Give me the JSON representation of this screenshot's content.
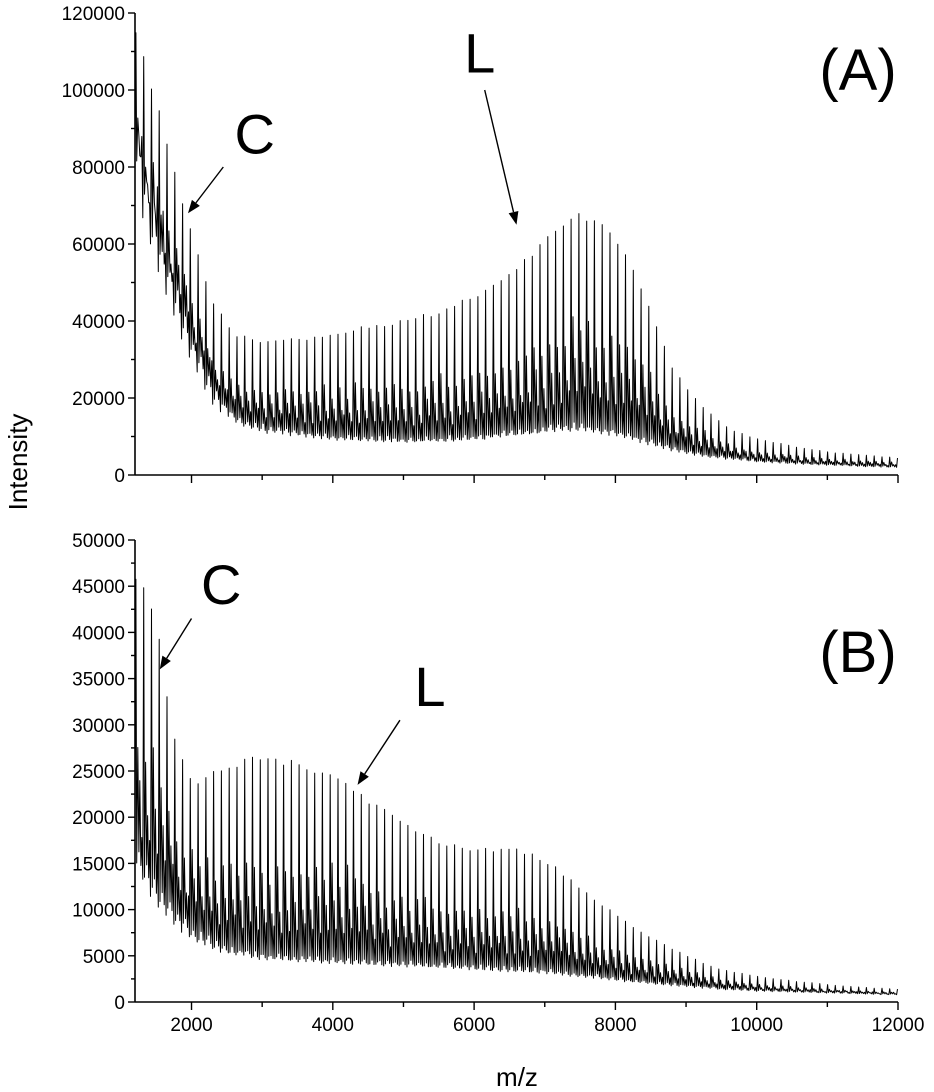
{
  "figure": {
    "ylabel": "Intensity",
    "xlabel": "m/z"
  },
  "chart_data": [
    {
      "type": "line",
      "panel": "(A)",
      "xlim": [
        1200,
        12000
      ],
      "ylim": [
        0,
        120000
      ],
      "x_ticks": [
        2000,
        4000,
        6000,
        8000,
        10000,
        12000
      ],
      "y_ticks": [
        0,
        20000,
        40000,
        60000,
        80000,
        100000,
        120000
      ],
      "peak_spacing": 110,
      "envelope_x": [
        1200,
        1300,
        1500,
        1800,
        2000,
        2300,
        2600,
        3000,
        3500,
        4000,
        4500,
        5000,
        5500,
        6000,
        6500,
        7000,
        7400,
        7700,
        8000,
        8400,
        8800,
        9200,
        9600,
        10000,
        10500,
        11000,
        11500,
        12000
      ],
      "envelope_peak_top": [
        118000,
        110000,
        98000,
        77000,
        62000,
        45000,
        37000,
        35000,
        35500,
        37000,
        39000,
        40500,
        43000,
        47000,
        53000,
        62000,
        68500,
        67500,
        62000,
        48000,
        28000,
        18000,
        12000,
        9500,
        7500,
        6000,
        5200,
        4500
      ],
      "envelope_baseline": [
        80000,
        70000,
        56000,
        40000,
        30000,
        19000,
        14000,
        11500,
        10500,
        9500,
        9000,
        8800,
        9000,
        9500,
        10500,
        11500,
        12000,
        11500,
        10500,
        8500,
        6500,
        5000,
        4200,
        3500,
        3000,
        2600,
        2300,
        2000
      ],
      "annotations": [
        {
          "label": "C",
          "arrow_from": [
            2450,
            80000
          ],
          "arrow_to": [
            1950,
            68000
          ]
        },
        {
          "label": "L",
          "arrow_from": [
            6150,
            100000
          ],
          "arrow_to": [
            6600,
            65000
          ]
        }
      ]
    },
    {
      "type": "line",
      "panel": "(B)",
      "xlim": [
        1200,
        12000
      ],
      "ylim": [
        0,
        50000
      ],
      "x_ticks": [
        2000,
        4000,
        6000,
        8000,
        10000,
        12000
      ],
      "y_ticks": [
        0,
        5000,
        10000,
        15000,
        20000,
        25000,
        30000,
        35000,
        40000,
        45000,
        50000
      ],
      "peak_spacing": 110,
      "envelope_x": [
        1200,
        1300,
        1500,
        1700,
        2000,
        2400,
        2800,
        3000,
        3500,
        4000,
        4500,
        5000,
        5500,
        6000,
        6500,
        7000,
        7500,
        8000,
        8500,
        9000,
        9500,
        10000,
        10500,
        11000,
        11500,
        12000
      ],
      "envelope_peak_top": [
        46500,
        45000,
        42000,
        30000,
        24000,
        25500,
        26500,
        26800,
        26000,
        25000,
        22000,
        19500,
        17500,
        16500,
        17000,
        15500,
        12500,
        9500,
        7000,
        5000,
        3500,
        2800,
        2300,
        1900,
        1600,
        1400
      ],
      "envelope_baseline": [
        15000,
        13500,
        11000,
        9000,
        7000,
        5500,
        5000,
        4800,
        4500,
        4300,
        4100,
        4000,
        3800,
        3600,
        3400,
        3200,
        2800,
        2400,
        2000,
        1700,
        1400,
        1200,
        1100,
        1000,
        900,
        800
      ],
      "annotations": [
        {
          "label": "C",
          "arrow_from": [
            2000,
            41500
          ],
          "arrow_to": [
            1550,
            36000
          ]
        },
        {
          "label": "L",
          "arrow_from": [
            4950,
            30500
          ],
          "arrow_to": [
            4350,
            23500
          ]
        }
      ]
    }
  ]
}
